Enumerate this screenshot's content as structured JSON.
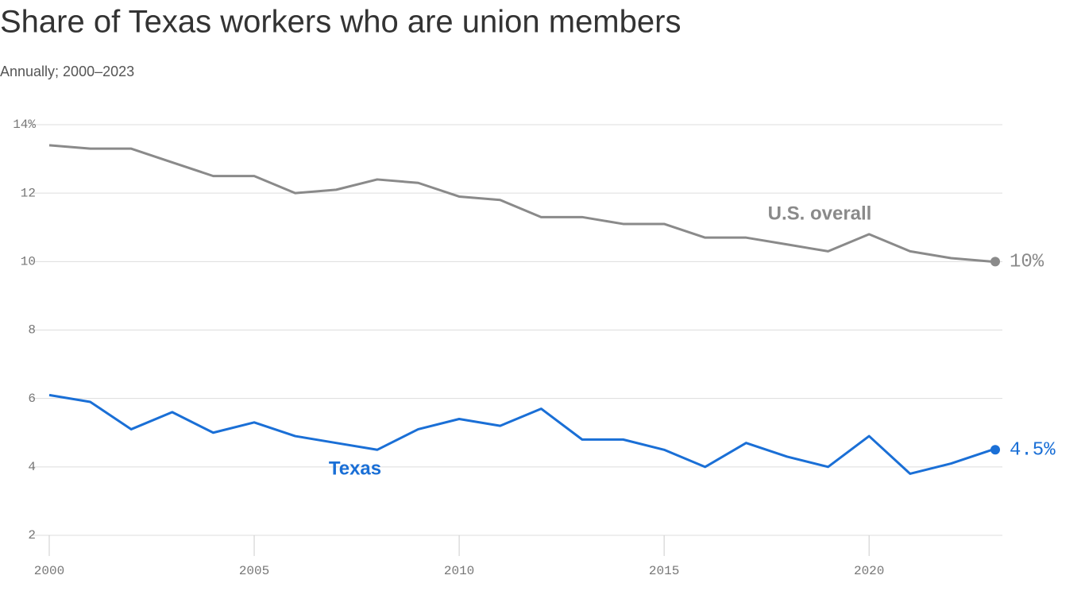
{
  "chart_data": {
    "type": "line",
    "title": "Share of Texas workers who are union members",
    "subtitle": "Annually; 2000–2023",
    "x": [
      2000,
      2001,
      2002,
      2003,
      2004,
      2005,
      2006,
      2007,
      2008,
      2009,
      2010,
      2011,
      2012,
      2013,
      2014,
      2015,
      2016,
      2017,
      2018,
      2019,
      2020,
      2021,
      2022,
      2023
    ],
    "series": [
      {
        "name": "U.S. overall",
        "color": "#8a8a8a",
        "values": [
          13.4,
          13.3,
          13.3,
          12.9,
          12.5,
          12.5,
          12.0,
          12.1,
          12.4,
          12.3,
          11.9,
          11.8,
          11.3,
          11.3,
          11.1,
          11.1,
          10.7,
          10.7,
          10.5,
          10.3,
          10.8,
          10.3,
          10.1,
          10.0
        ],
        "value_labels": [
          null,
          null,
          null,
          null,
          null,
          null,
          null,
          null,
          null,
          null,
          null,
          null,
          null,
          null,
          null,
          null,
          null,
          null,
          null,
          null,
          null,
          null,
          null,
          "10%"
        ]
      },
      {
        "name": "Texas",
        "color": "#1a6fd6",
        "values": [
          6.1,
          5.9,
          5.1,
          5.6,
          5.0,
          5.3,
          4.9,
          4.7,
          4.5,
          5.1,
          5.4,
          5.2,
          5.7,
          4.8,
          4.8,
          4.5,
          4.0,
          4.7,
          4.3,
          4.0,
          4.9,
          3.8,
          4.1,
          4.5
        ],
        "value_labels": [
          null,
          null,
          null,
          null,
          null,
          null,
          null,
          null,
          null,
          null,
          null,
          null,
          null,
          null,
          null,
          null,
          null,
          null,
          null,
          null,
          null,
          null,
          null,
          "4.5%"
        ]
      }
    ],
    "xlim": [
      2000,
      2023
    ],
    "xticks": [
      2000,
      2005,
      2010,
      2015,
      2020
    ],
    "ylim": [
      2,
      14
    ],
    "yticks": [
      2,
      4,
      6,
      8,
      10,
      12,
      {
        "value": 14,
        "label": "14%"
      }
    ],
    "grid": true
  }
}
